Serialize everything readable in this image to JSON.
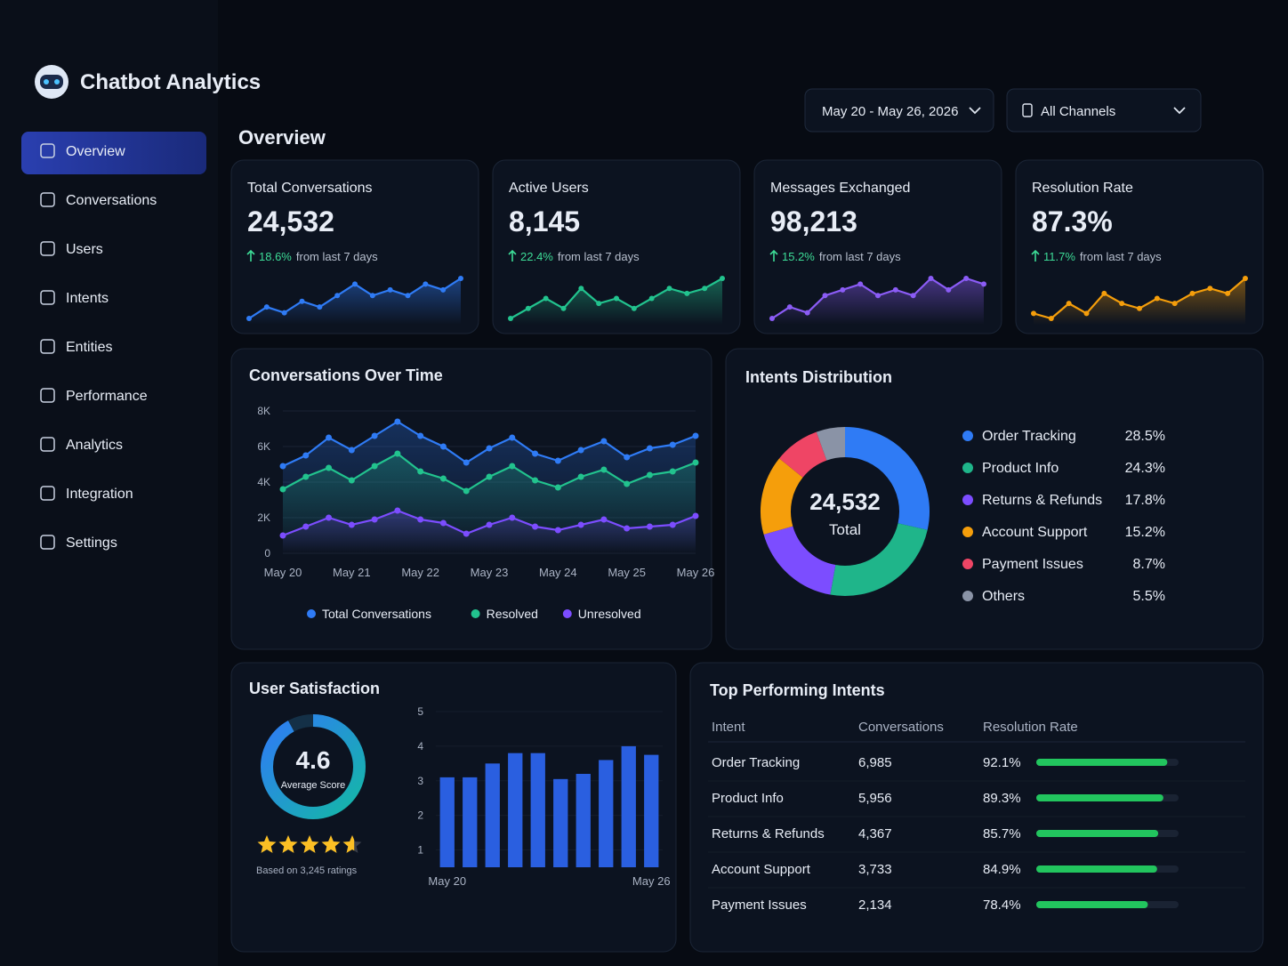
{
  "header": {
    "title": "Chatbot Analytics",
    "date_range": "May 20 - May 26, 2026",
    "channel": "All Channels"
  },
  "nav": [
    "Overview",
    "Conversations",
    "Users",
    "Intents",
    "Entities",
    "Performance",
    "Analytics",
    "Integration",
    "Settings"
  ],
  "section_title": "Overview",
  "kpis": [
    {
      "label": "Total Conversations",
      "value": "24,532",
      "change": "18.6%",
      "note": "from last 7 days",
      "color": "#2f7bf5",
      "trend": [
        3,
        4,
        3.5,
        4.5,
        4,
        5,
        6,
        5,
        5.5,
        5,
        6,
        5.5,
        6.5
      ]
    },
    {
      "label": "Active Users",
      "value": "8,145",
      "change": "22.4%",
      "note": "from last 7 days",
      "color": "#22c38e",
      "trend": [
        3,
        4,
        5,
        4,
        6,
        4.5,
        5,
        4,
        5,
        6,
        5.5,
        6,
        7
      ]
    },
    {
      "label": "Messages Exchanged",
      "value": "98,213",
      "change": "15.2%",
      "note": "from last 7 days",
      "color": "#8b5cf6",
      "trend": [
        3,
        4,
        3.5,
        5,
        5.5,
        6,
        5,
        5.5,
        5,
        6.5,
        5.5,
        6.5,
        6
      ]
    },
    {
      "label": "Resolution Rate",
      "value": "87.3%",
      "change": "11.7%",
      "note": "from last 7 days",
      "color": "#f59e0b",
      "trend": [
        4,
        3.5,
        5,
        4,
        6,
        5,
        4.5,
        5.5,
        5,
        6,
        6.5,
        6,
        7.5
      ]
    }
  ],
  "chart_data": [
    {
      "type": "line",
      "title": "Conversations Over Time",
      "categories": [
        "May 20",
        null,
        null,
        "May 21",
        null,
        null,
        "May 22",
        null,
        null,
        "May 23",
        null,
        null,
        "May 24",
        null,
        null,
        "May 25",
        null,
        null,
        "May 26"
      ],
      "ylim": [
        0,
        8000
      ],
      "yticks": [
        0,
        {
          "value": 2000,
          "label": "2K"
        },
        {
          "value": 4000,
          "label": "4K"
        },
        {
          "value": 6000,
          "label": "6K"
        },
        {
          "value": 8000,
          "label": "8K"
        }
      ],
      "series": [
        {
          "name": "Total Conversations",
          "color": "#2f7bf5",
          "values": [
            4900,
            5500,
            6500,
            5800,
            6600,
            7400,
            6600,
            6000,
            5100,
            5900,
            6500,
            5600,
            5200,
            5800,
            6300,
            5400,
            5900,
            6100,
            6600
          ]
        },
        {
          "name": "Resolved",
          "color": "#22c38e",
          "values": [
            3600,
            4300,
            4800,
            4100,
            4900,
            5600,
            4600,
            4200,
            3500,
            4300,
            4900,
            4100,
            3700,
            4300,
            4700,
            3900,
            4400,
            4600,
            5100
          ]
        },
        {
          "name": "Unresolved",
          "color": "#7c4dff",
          "values": [
            1000,
            1500,
            2000,
            1600,
            1900,
            2400,
            1900,
            1700,
            1100,
            1600,
            2000,
            1500,
            1300,
            1600,
            1900,
            1400,
            1500,
            1600,
            2100
          ]
        }
      ]
    },
    {
      "type": "donut",
      "title": "Intents Distribution",
      "center_value": "24,532",
      "center_label": "Total",
      "categories": [
        "Order Tracking",
        "Product Info",
        "Returns & Refunds",
        "Account Support",
        "Payment Issues",
        "Others"
      ],
      "values": [
        28.5,
        24.3,
        17.8,
        15.2,
        8.7,
        5.5
      ],
      "value_labels": [
        "28.5%",
        "24.3%",
        "17.8%",
        "15.2%",
        "8.7%",
        "5.5%"
      ],
      "colors": [
        "#2f7bf5",
        "#1fb58a",
        "#7c4dff",
        "#f59e0b",
        "#ef4565",
        "#8a93a6"
      ]
    },
    {
      "type": "bar",
      "title": "User Satisfaction",
      "categories": [
        "May 20",
        null,
        null,
        null,
        null,
        null,
        null,
        null,
        null,
        "May 26"
      ],
      "values": [
        3.1,
        3.1,
        3.5,
        3.8,
        3.8,
        3.05,
        3.2,
        3.6,
        4.0,
        3.75
      ],
      "ylim": [
        0.5,
        5
      ],
      "yticks": [
        1,
        2,
        3,
        4,
        5
      ],
      "color": "#2a5fe0"
    }
  ],
  "satisfaction": {
    "score": 4.6,
    "score_label": "Average Score",
    "ratings_note": "Based on 3,245 ratings"
  },
  "table": {
    "title": "Top Performing Intents",
    "columns": [
      "Intent",
      "Conversations",
      "Resolution Rate"
    ],
    "rows": [
      [
        "Order Tracking",
        "6,985"
      ],
      [
        "Product Info",
        "5,956"
      ],
      [
        "Returns & Refunds",
        "4,367"
      ],
      [
        "Account Support",
        "3,733"
      ],
      [
        "Payment Issues",
        "2,134"
      ]
    ],
    "resolution_rate": [
      92.1,
      89.3,
      85.7,
      84.9,
      78.4
    ],
    "resolution_rate_labels": [
      "92.1%",
      "89.3%",
      "85.7%",
      "84.9%",
      "78.4%"
    ]
  }
}
